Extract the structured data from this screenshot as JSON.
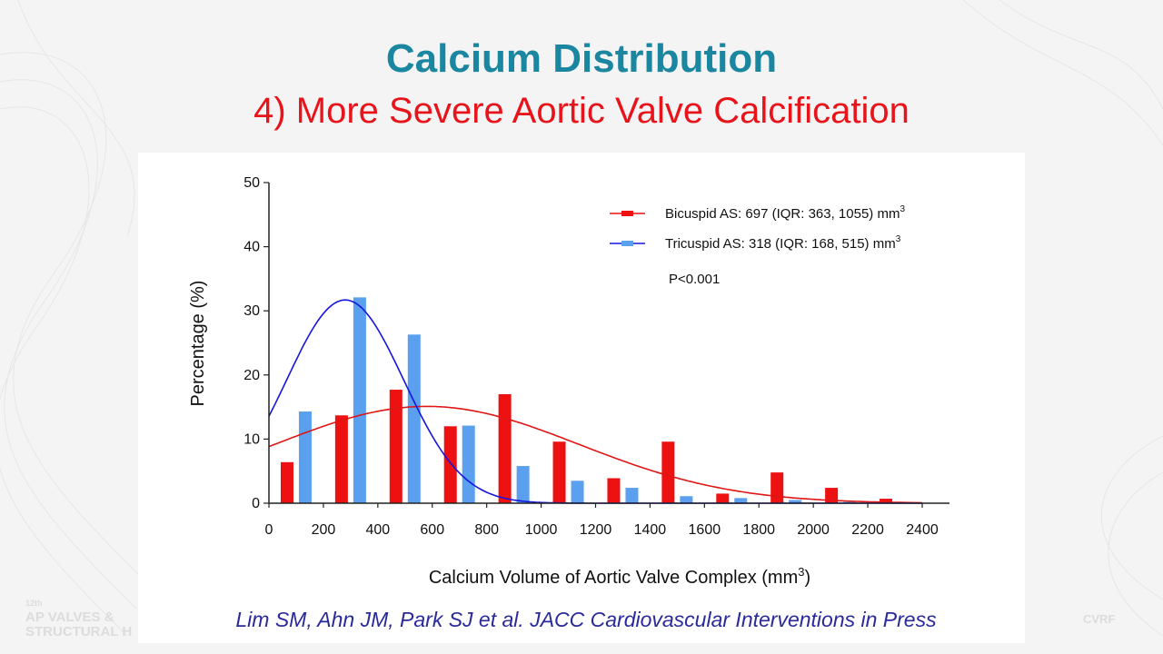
{
  "slide": {
    "title": "Calcium Distribution",
    "subtitle": "4) More Severe Aortic Valve Calcification",
    "citation": "Lim SM, Ahn JM, Park SJ et al. JACC Cardiovascular Interventions in Press",
    "event_logo_small": "12th",
    "event_logo_line1": "AP VALVES &",
    "event_logo_line2": "STRUCTURAL H",
    "org_logo": "CVRF"
  },
  "chart_data": {
    "type": "bar",
    "xlabel": "Calcium  Volume of Aortic Valve Complex (mm",
    "xlabel_sup": "3",
    "xlabel_end": ")",
    "ylabel": "Percentage (%)",
    "xlim": [
      0,
      2400
    ],
    "ylim": [
      0,
      50
    ],
    "xticks": [
      0,
      200,
      400,
      600,
      800,
      1000,
      1200,
      1400,
      1600,
      1800,
      2000,
      2200,
      2400
    ],
    "yticks": [
      0,
      10,
      20,
      30,
      40,
      50
    ],
    "bin_width": 200,
    "series": [
      {
        "name": "Bicuspid AS: 697 (IQR: 363, 1055) mm",
        "name_sup": "3",
        "color": "#ee1111",
        "bin_centers": [
          100,
          300,
          500,
          700,
          900,
          1100,
          1300,
          1500,
          1700,
          1900,
          2100,
          2300
        ],
        "values": [
          6.4,
          13.7,
          17.7,
          12.0,
          17.0,
          9.6,
          3.9,
          9.6,
          1.5,
          4.8,
          2.4,
          0.7
        ],
        "fit": {
          "type": "normal",
          "amplitude": 15.1,
          "mean": 580,
          "sd": 560
        }
      },
      {
        "name": "Tricuspid AS: 318 (IQR: 168, 515) mm",
        "name_sup": "3",
        "color": "#5aa0ef",
        "bin_centers": [
          100,
          300,
          500,
          700,
          900,
          1100,
          1300,
          1500,
          1700,
          1900,
          2100,
          2300
        ],
        "values": [
          14.3,
          32.1,
          26.3,
          12.1,
          5.8,
          3.5,
          2.4,
          1.1,
          0.8,
          0.5,
          0.2,
          0.2
        ],
        "fit": {
          "type": "normal",
          "amplitude": 31.7,
          "mean": 280,
          "sd": 215,
          "line_color": "#1515dd"
        }
      }
    ],
    "annotation": "P<0.001",
    "legend_position": "top-right",
    "grid": false
  }
}
